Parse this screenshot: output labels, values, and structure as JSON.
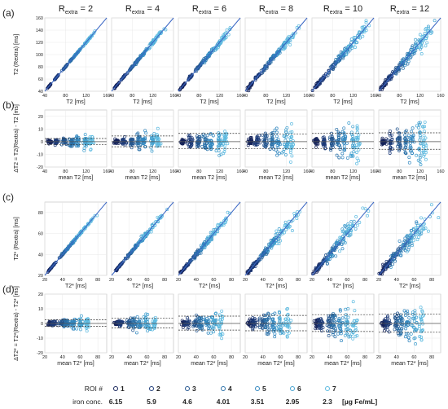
{
  "columns": [
    {
      "label": "R",
      "sub": "extra",
      "eq": " = 2"
    },
    {
      "label": "R",
      "sub": "extra",
      "eq": " = 4"
    },
    {
      "label": "R",
      "sub": "extra",
      "eq": " = 6"
    },
    {
      "label": "R",
      "sub": "extra",
      "eq": " = 8"
    },
    {
      "label": "R",
      "sub": "extra",
      "eq": " = 10"
    },
    {
      "label": "R",
      "sub": "extra",
      "eq": " = 12"
    }
  ],
  "legend": {
    "roi_label": "ROI #",
    "iron_label": "iron conc.",
    "unit": "[µg Fe/mL]",
    "rois": [
      "1",
      "2",
      "3",
      "4",
      "5",
      "6",
      "7"
    ],
    "iron": [
      "6.15",
      "5.9",
      "4.6",
      "4.01",
      "3.51",
      "2.95",
      "2.3"
    ],
    "colors": [
      "#15235a",
      "#1c3a78",
      "#24568f",
      "#2a70a8",
      "#3388c0",
      "#45a2d0",
      "#5cbae0"
    ]
  },
  "chart_data": [
    {
      "panel": "(a)",
      "type": "scatter",
      "xlabel": "T2 [ms]",
      "ylabel": "T2 (Rextra) [ms]",
      "xlim": [
        40,
        160
      ],
      "ylim": [
        40,
        160
      ],
      "xticks": [
        "40",
        "80",
        "120",
        "160"
      ],
      "yticks": [
        "40",
        "60",
        "80",
        "100",
        "120",
        "140",
        "160"
      ],
      "identity_line": true,
      "cluster_x": [
        49,
        63,
        79,
        92,
        103,
        119,
        129
      ],
      "cluster_spread": [
        3,
        3,
        4,
        5,
        5,
        7,
        8
      ]
    },
    {
      "panel": "(b)",
      "type": "scatter",
      "xlabel": "mean T2 [ms]",
      "ylabel": "ΔT2 = T2(Rextra) - T2 [ms]",
      "xlim": [
        40,
        160
      ],
      "ylim": [
        -20,
        25
      ],
      "xticks": [
        "40",
        "80",
        "120",
        "160"
      ],
      "yticks": [
        "-20",
        "-10",
        "0",
        "10",
        "20"
      ],
      "cluster_x": [
        49,
        63,
        79,
        92,
        103,
        119,
        129
      ],
      "bias": 0,
      "limits_of_agreement": [
        [
          -2.2,
          2.5
        ],
        [
          -4,
          4.5
        ],
        [
          -5.5,
          6.5
        ],
        [
          -5.5,
          6
        ],
        [
          -5.5,
          6.5
        ],
        [
          -6,
          7
        ]
      ]
    },
    {
      "panel": "(c)",
      "type": "scatter",
      "xlabel": "T2* [ms]",
      "ylabel": "T2* (Rextra) [ms]",
      "xlim": [
        20,
        90
      ],
      "ylim": [
        20,
        90
      ],
      "xticks": [
        "20",
        "40",
        "60",
        "80"
      ],
      "yticks": [
        "20",
        "40",
        "60",
        "80"
      ],
      "identity_line": true,
      "cluster_x": [
        26,
        30,
        40,
        45,
        52,
        60,
        68
      ],
      "cluster_spread": [
        2,
        2,
        3,
        4,
        5,
        6,
        7
      ]
    },
    {
      "panel": "(d)",
      "type": "scatter",
      "xlabel": "mean T2* [ms]",
      "ylabel": "ΔT2* = T2*(Rextra) - T2* [ms]",
      "xlim": [
        20,
        90
      ],
      "ylim": [
        -20,
        20
      ],
      "xticks": [
        "20",
        "40",
        "60",
        "80"
      ],
      "yticks": [
        "-20",
        "-10",
        "0",
        "10",
        "20"
      ],
      "cluster_x": [
        26,
        30,
        40,
        45,
        52,
        60,
        68
      ],
      "bias": 0,
      "limits_of_agreement": [
        [
          -2,
          2.5
        ],
        [
          -3,
          3.5
        ],
        [
          -4.5,
          5
        ],
        [
          -5,
          5.5
        ],
        [
          -5.5,
          6
        ],
        [
          -6,
          6.5
        ]
      ]
    }
  ]
}
